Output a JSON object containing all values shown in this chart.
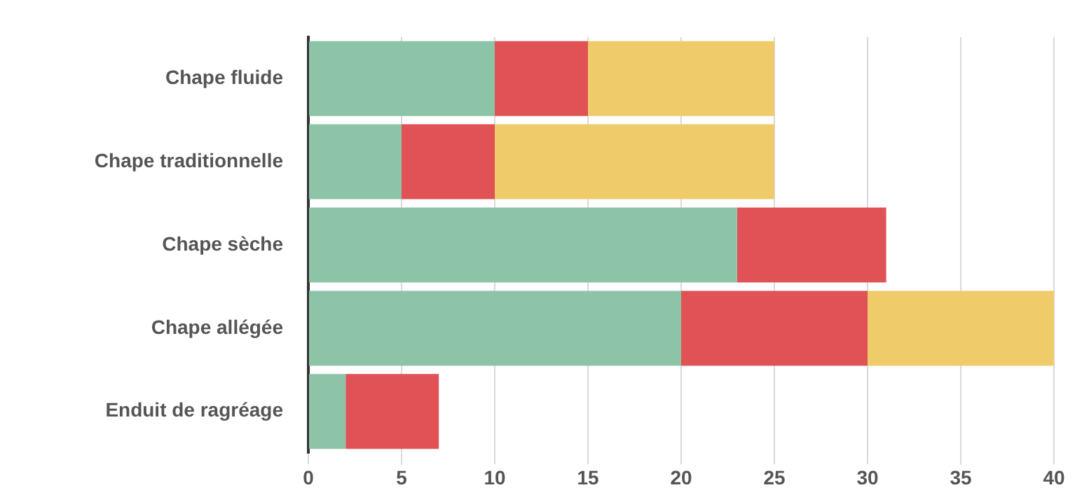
{
  "chart_data": {
    "type": "bar",
    "orientation": "horizontal",
    "stacked": true,
    "categories": [
      "Chape fluide",
      "Chape traditionnelle",
      "Chape sèche",
      "Chape allégée",
      "Enduit de ragréage"
    ],
    "series": [
      {
        "color": "#8dc3a7",
        "values": [
          10,
          5,
          23,
          20,
          2
        ]
      },
      {
        "color": "#e05256",
        "values": [
          5,
          5,
          8,
          10,
          5
        ]
      },
      {
        "color": "#f0cb69",
        "values": [
          10,
          15,
          null,
          10,
          null
        ]
      }
    ],
    "xlim": [
      0,
      40
    ],
    "xticks": [
      0,
      5,
      10,
      15,
      20,
      25,
      30,
      35,
      40
    ],
    "grid": "x",
    "legend": false
  }
}
